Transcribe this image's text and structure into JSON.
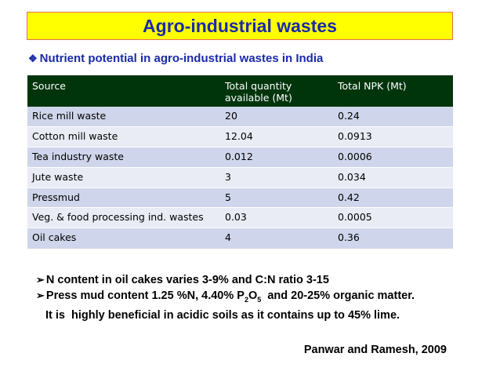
{
  "title": "Agro-industrial wastes",
  "subtitle": "Nutrient potential in agro-industrial wastes in India",
  "table": {
    "headers": [
      "Source",
      "Total quantity available (Mt)",
      "Total NPK (Mt)"
    ],
    "rows": [
      [
        "Rice mill waste",
        "20",
        "0.24"
      ],
      [
        "Cotton mill waste",
        "12.04",
        "0.0913"
      ],
      [
        "Tea industry waste",
        "0.012",
        "0.0006"
      ],
      [
        "Jute waste",
        "3",
        "0.034"
      ],
      [
        "Pressmud",
        "5",
        "0.42"
      ],
      [
        "Veg. & food processing ind. wastes",
        "0.03",
        "0.0005"
      ],
      [
        "Oil cakes",
        "4",
        "0.36"
      ]
    ]
  },
  "notes": {
    "note1": "N content in oil cakes varies 3-9% and C:N ratio 3-15",
    "note2_part1": "Press mud content 1.25 %N, 4.40% P",
    "note2_sub1": "2",
    "note2_part2": "O",
    "note2_sub2": "5",
    "note2_part3": "  and 20-25% organic matter.",
    "note3": "It is  highly beneficial in acidic soils as it contains up to 45% lime."
  },
  "citation": "Panwar and Ramesh, 2009",
  "icons": {
    "subtitle_bullet": "diamond-bullet-icon",
    "note_bullet": "arrow-bullet-icon"
  }
}
